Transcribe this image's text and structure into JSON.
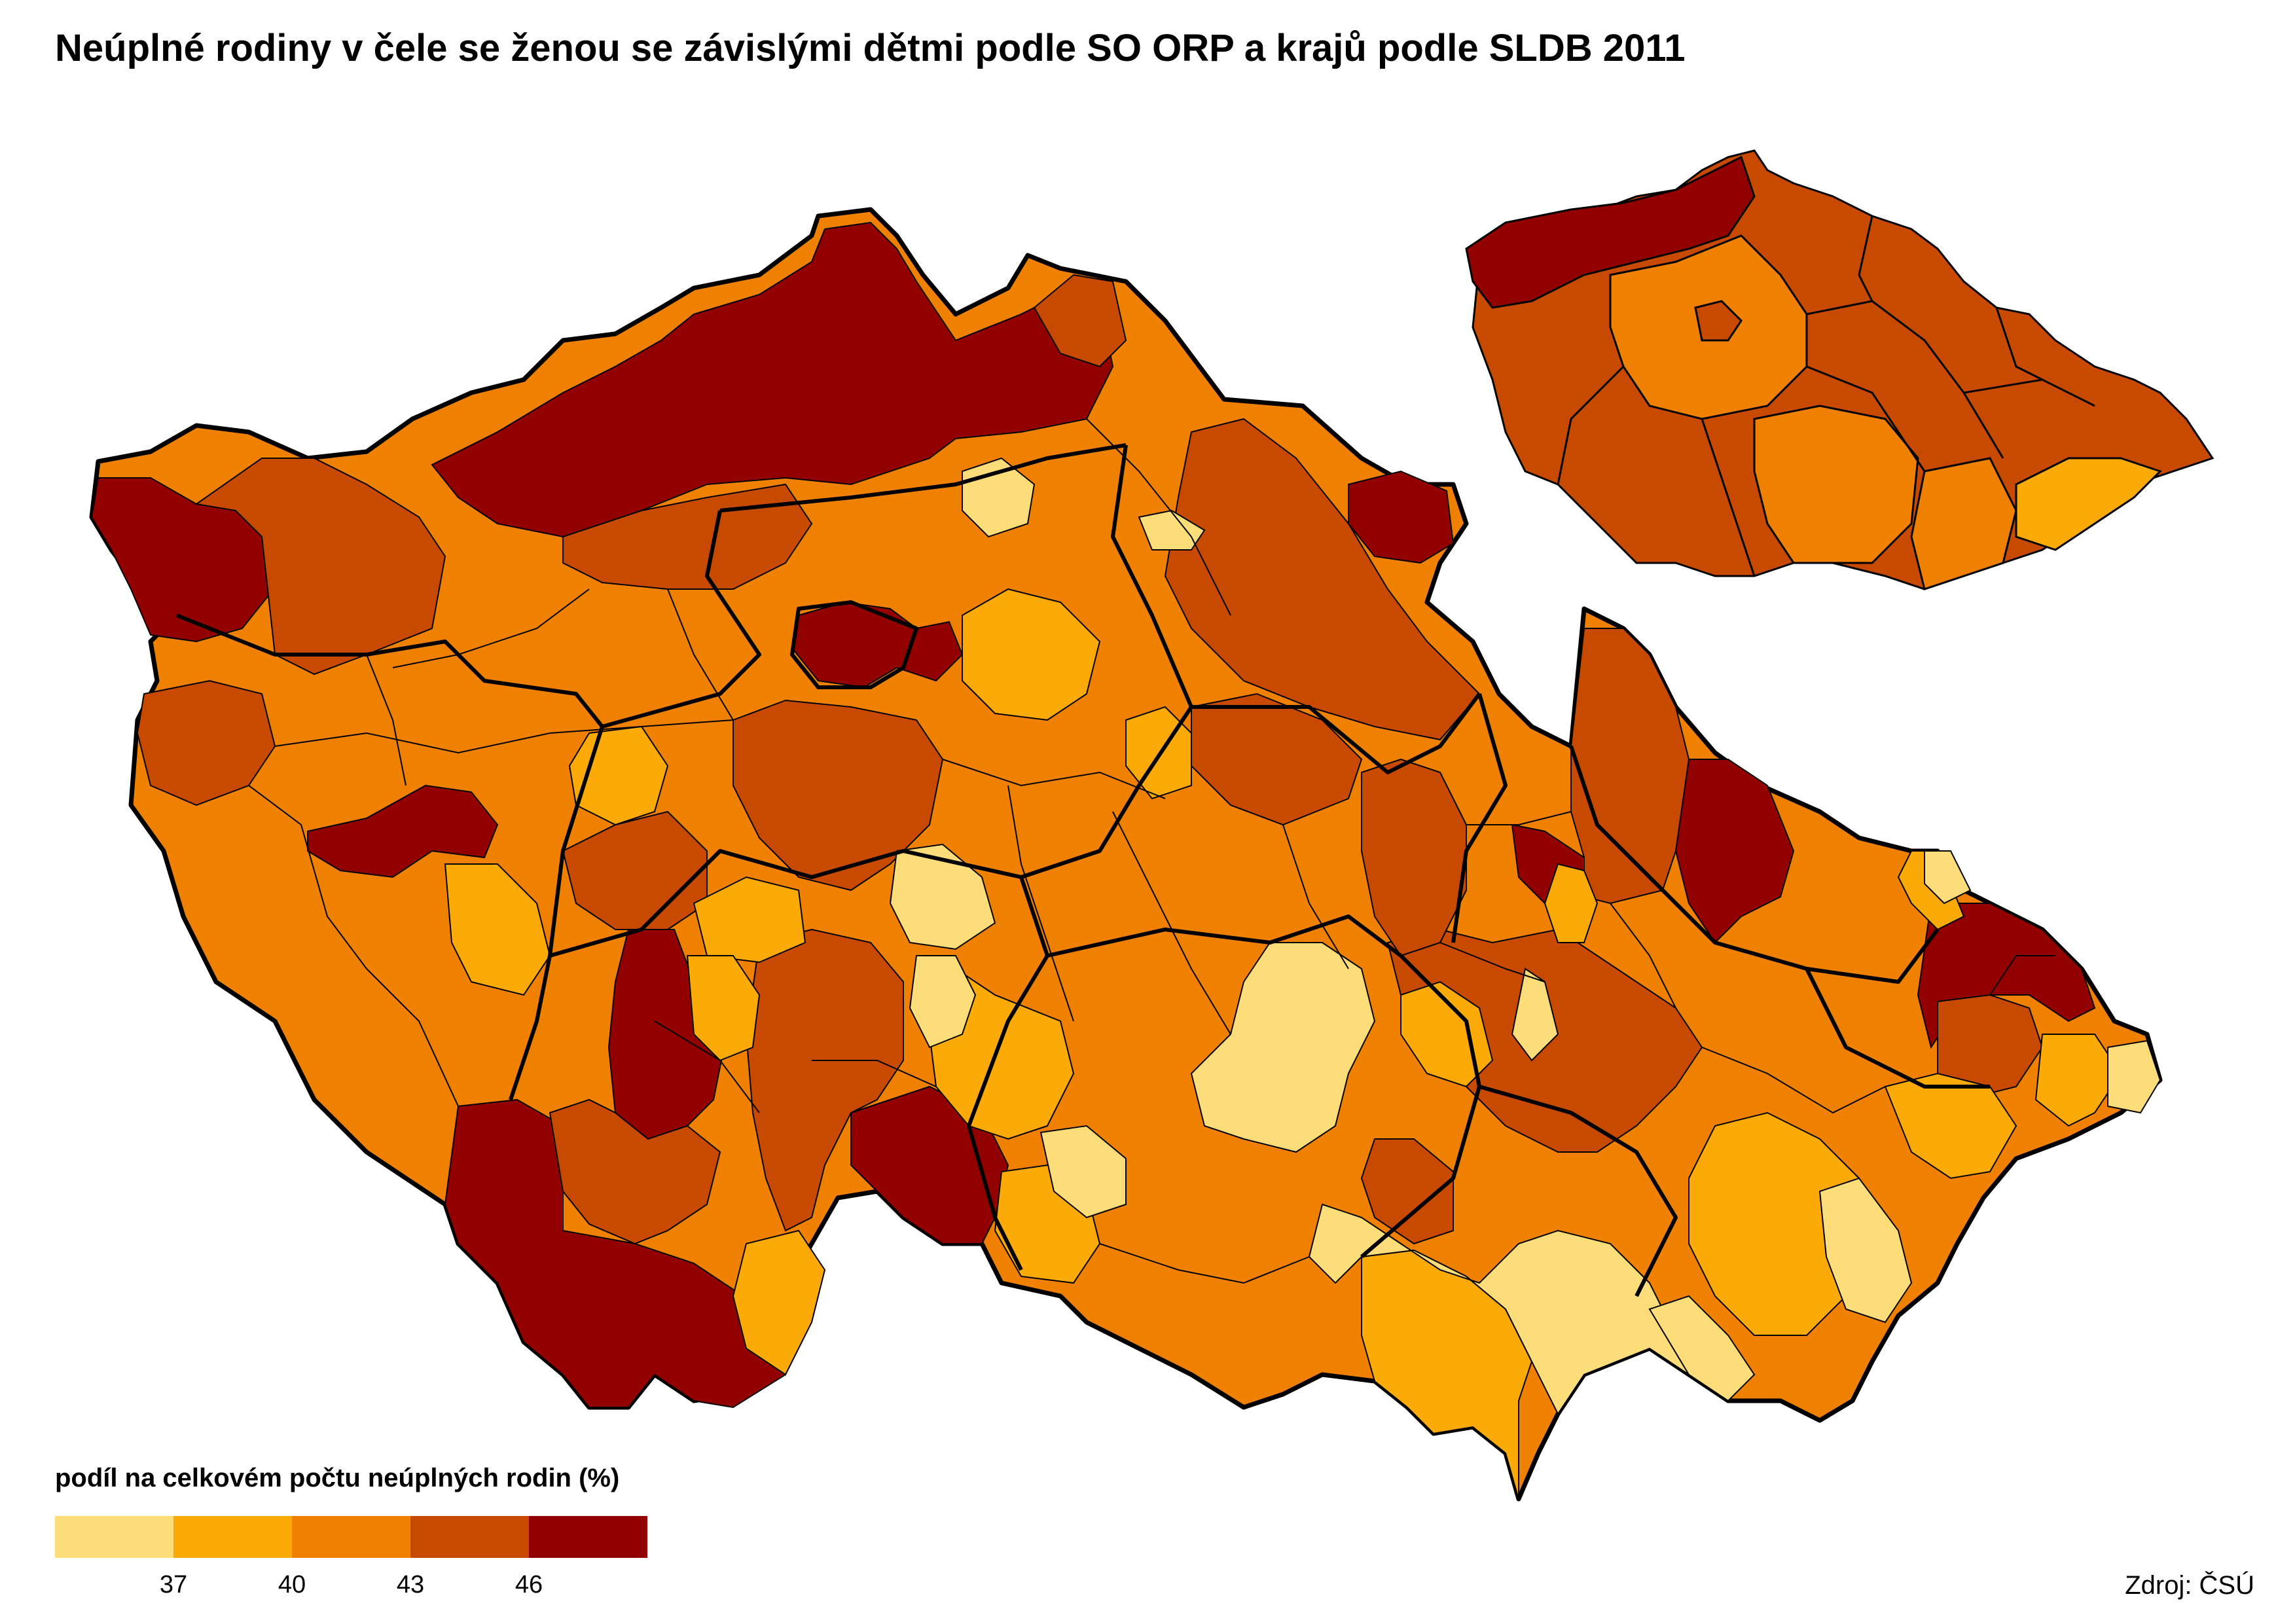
{
  "title": "Neúplné rodiny v čele se ženou se závislými dětmi podle SO ORP a krajů podle SLDB 2011",
  "legend": {
    "title": "podíl na celkovém počtu neúplných rodin (%)",
    "ticks": [
      "37",
      "40",
      "43",
      "46"
    ],
    "classes": [
      {
        "color": "#fddc7a"
      },
      {
        "color": "#fbaa07"
      },
      {
        "color": "#ef8000"
      },
      {
        "color": "#c74a00"
      },
      {
        "color": "#930000"
      }
    ]
  },
  "source": "Zdroj: ČSÚ",
  "colors": {
    "class1": "#fddc7a",
    "class2": "#fbaa07",
    "class3": "#ef8000",
    "class4": "#c74a00",
    "class5": "#930000",
    "border": "#000000"
  }
}
